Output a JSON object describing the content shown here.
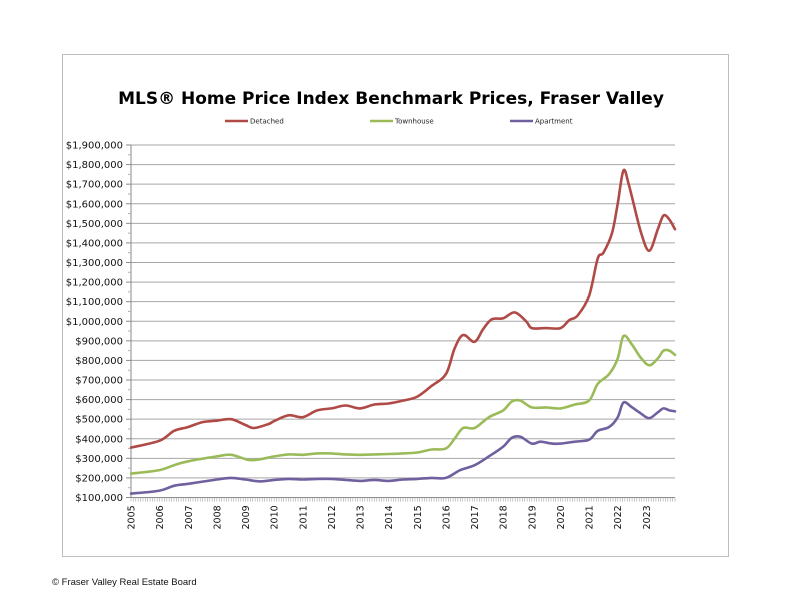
{
  "footer": "© Fraser Valley Real Estate Board",
  "chart_data": {
    "type": "line",
    "title": "MLS® Home Price Index Benchmark Prices, Fraser Valley",
    "xlabel": "",
    "ylabel": "",
    "xlim": [
      2005,
      2024
    ],
    "ylim": [
      100000,
      1900000
    ],
    "yticks": [
      100000,
      200000,
      300000,
      400000,
      500000,
      600000,
      700000,
      800000,
      900000,
      1000000,
      1100000,
      1200000,
      1300000,
      1400000,
      1500000,
      1600000,
      1700000,
      1800000,
      1900000
    ],
    "ytick_labels": [
      "$100,000",
      "$200,000",
      "$300,000",
      "$400,000",
      "$500,000",
      "$600,000",
      "$700,000",
      "$800,000",
      "$900,000",
      "$1,000,000",
      "$1,100,000",
      "$1,200,000",
      "$1,300,000",
      "$1,400,000",
      "$1,500,000",
      "$1,600,000",
      "$1,700,000",
      "$1,800,000",
      "$1,900,000"
    ],
    "xticks": [
      2005,
      2006,
      2007,
      2008,
      2009,
      2010,
      2011,
      2012,
      2013,
      2014,
      2015,
      2016,
      2017,
      2018,
      2019,
      2020,
      2021,
      2022,
      2023
    ],
    "xtick_labels": [
      "2005",
      "2006",
      "2007",
      "2008",
      "2009",
      "2010",
      "2011",
      "2012",
      "2013",
      "2014",
      "2015",
      "2016",
      "2017",
      "2018",
      "2019",
      "2020",
      "2021",
      "2022",
      "2023"
    ],
    "grid": true,
    "legend_position": "top",
    "series": [
      {
        "name": "Detached",
        "color": "#b04a47",
        "x": [
          2005,
          2006,
          2006.5,
          2007,
          2007.5,
          2008,
          2008.5,
          2009,
          2009.3,
          2009.8,
          2010,
          2010.5,
          2011,
          2011.5,
          2012,
          2012.5,
          2013,
          2013.5,
          2014,
          2014.5,
          2015,
          2015.5,
          2016,
          2016.3,
          2016.6,
          2017,
          2017.3,
          2017.6,
          2018,
          2018.4,
          2018.8,
          2019,
          2019.5,
          2020,
          2020.3,
          2020.6,
          2021,
          2021.3,
          2021.5,
          2021.8,
          2022,
          2022.2,
          2022.4,
          2022.8,
          2023.1,
          2023.4,
          2023.6,
          2023.8,
          2024
        ],
        "values": [
          355000,
          390000,
          440000,
          460000,
          485000,
          492000,
          500000,
          470000,
          455000,
          475000,
          490000,
          520000,
          510000,
          545000,
          555000,
          570000,
          555000,
          575000,
          580000,
          595000,
          615000,
          670000,
          730000,
          860000,
          930000,
          895000,
          960000,
          1010000,
          1015000,
          1045000,
          1000000,
          965000,
          965000,
          965000,
          1005000,
          1030000,
          1130000,
          1320000,
          1350000,
          1450000,
          1600000,
          1770000,
          1690000,
          1460000,
          1360000,
          1470000,
          1540000,
          1520000,
          1470000
        ]
      },
      {
        "name": "Townhouse",
        "color": "#9bbb59",
        "x": [
          2005,
          2006,
          2006.5,
          2007,
          2008,
          2008.5,
          2009.1,
          2009.5,
          2010,
          2010.5,
          2011,
          2011.5,
          2012,
          2012.5,
          2013,
          2013.5,
          2014,
          2014.5,
          2015,
          2015.5,
          2016,
          2016.3,
          2016.6,
          2017,
          2017.5,
          2018,
          2018.3,
          2018.6,
          2019,
          2019.5,
          2020,
          2020.5,
          2021,
          2021.3,
          2021.7,
          2022,
          2022.2,
          2022.5,
          2022.8,
          2023.1,
          2023.4,
          2023.6,
          2023.8,
          2024
        ],
        "values": [
          222000,
          240000,
          265000,
          285000,
          310000,
          318000,
          292000,
          295000,
          310000,
          320000,
          318000,
          325000,
          325000,
          320000,
          318000,
          320000,
          322000,
          325000,
          330000,
          345000,
          350000,
          400000,
          455000,
          455000,
          510000,
          545000,
          590000,
          595000,
          560000,
          560000,
          555000,
          575000,
          595000,
          680000,
          730000,
          810000,
          925000,
          880000,
          815000,
          775000,
          810000,
          850000,
          850000,
          828000
        ]
      },
      {
        "name": "Apartment",
        "color": "#7060a0",
        "x": [
          2005,
          2006,
          2006.5,
          2007,
          2008,
          2008.5,
          2009,
          2009.5,
          2010,
          2010.5,
          2011,
          2011.5,
          2012,
          2012.5,
          2013,
          2013.5,
          2014,
          2014.5,
          2015,
          2015.5,
          2016,
          2016.5,
          2017,
          2017.5,
          2018,
          2018.3,
          2018.6,
          2019,
          2019.3,
          2019.7,
          2020,
          2020.5,
          2021,
          2021.3,
          2021.7,
          2022,
          2022.2,
          2022.5,
          2022.8,
          2023.1,
          2023.4,
          2023.6,
          2023.8,
          2024
        ],
        "values": [
          120000,
          135000,
          160000,
          170000,
          192000,
          200000,
          192000,
          182000,
          190000,
          195000,
          192000,
          195000,
          195000,
          190000,
          185000,
          190000,
          185000,
          192000,
          195000,
          200000,
          200000,
          240000,
          265000,
          310000,
          360000,
          405000,
          410000,
          375000,
          385000,
          375000,
          375000,
          385000,
          395000,
          440000,
          460000,
          510000,
          585000,
          560000,
          530000,
          505000,
          535000,
          555000,
          545000,
          540000
        ]
      }
    ]
  }
}
